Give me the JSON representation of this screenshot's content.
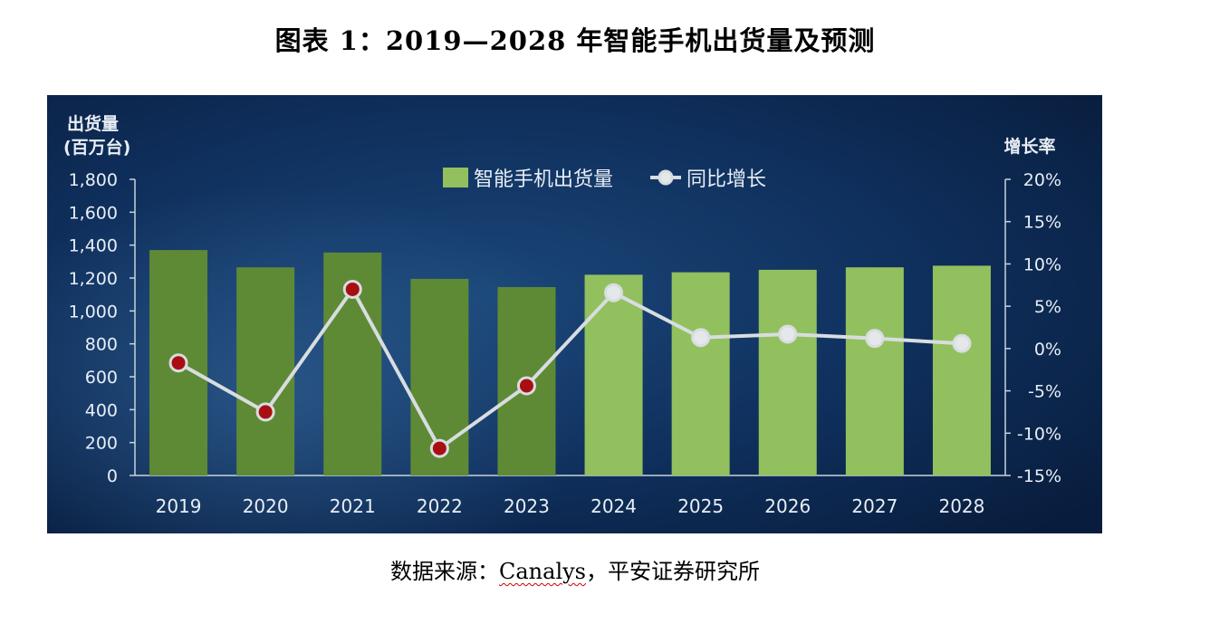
{
  "figure": {
    "title": "图表 1：2019—2028 年智能手机出货量及预测",
    "source_prefix": "数据来源：",
    "source_brand": "Canalys",
    "source_suffix": "，平安证券研究所"
  },
  "chart_data": {
    "type": "bar+line",
    "categories": [
      "2019",
      "2020",
      "2021",
      "2022",
      "2023",
      "2024",
      "2025",
      "2026",
      "2027",
      "2028"
    ],
    "series": [
      {
        "name": "智能手机出货量",
        "kind": "bar",
        "axis": "left",
        "values": [
          1370,
          1265,
          1355,
          1195,
          1145,
          1220,
          1235,
          1250,
          1265,
          1275
        ]
      },
      {
        "name": "同比增长",
        "kind": "line",
        "axis": "right",
        "values": [
          -1.7,
          -7.5,
          7.0,
          -11.8,
          -4.4,
          6.6,
          1.3,
          1.7,
          1.2,
          0.6
        ]
      }
    ],
    "y_left": {
      "label_line1": "出货量",
      "label_line2": "(百万台)",
      "min": 0,
      "max": 1800,
      "ticks": [
        "0",
        "200",
        "400",
        "600",
        "800",
        "1,000",
        "1,200",
        "1,400",
        "1,600",
        "1,800"
      ]
    },
    "y_right": {
      "label": "增长率",
      "min": -15,
      "max": 20,
      "ticks": [
        "-15%",
        "-10%",
        "-5%",
        "0%",
        "5%",
        "10%",
        "15%",
        "20%"
      ]
    },
    "grid": false,
    "legend": "top-center",
    "actual_years_count": 5,
    "colors": {
      "background": "#0c2850",
      "bar_actual": "#5e8a36",
      "bar_forecast": "#92c05e",
      "line": "#d8dde0",
      "marker_actual": "#a80f12",
      "marker_forecast": "#e4e8ea",
      "axis": "#c8d2dc"
    }
  }
}
